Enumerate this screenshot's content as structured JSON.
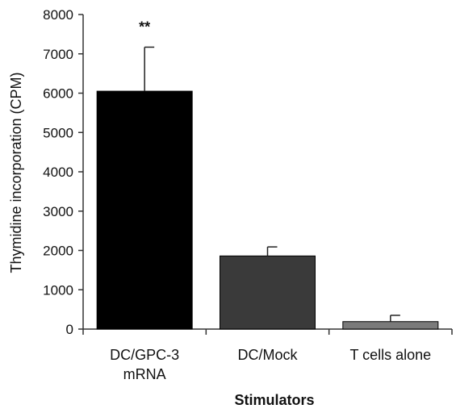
{
  "chart_data": {
    "type": "bar",
    "categories": [
      [
        "DC/GPC-3",
        "mRNA"
      ],
      [
        "DC/Mock"
      ],
      [
        "T cells alone"
      ]
    ],
    "values": [
      6050,
      1860,
      190
    ],
    "error_bars": [
      1120,
      230,
      160
    ],
    "bar_colors": [
      "#000000",
      "#3a3a3a",
      "#7a7a7a"
    ],
    "annotations": [
      "**",
      "",
      ""
    ],
    "ylabel": "Thymidine incorporation (CPM)",
    "xlabel": "Stimulators",
    "ylim": [
      0,
      8000
    ],
    "yticks": [
      0,
      1000,
      2000,
      3000,
      4000,
      5000,
      6000,
      7000,
      8000
    ],
    "grid": false,
    "legend": "none"
  }
}
